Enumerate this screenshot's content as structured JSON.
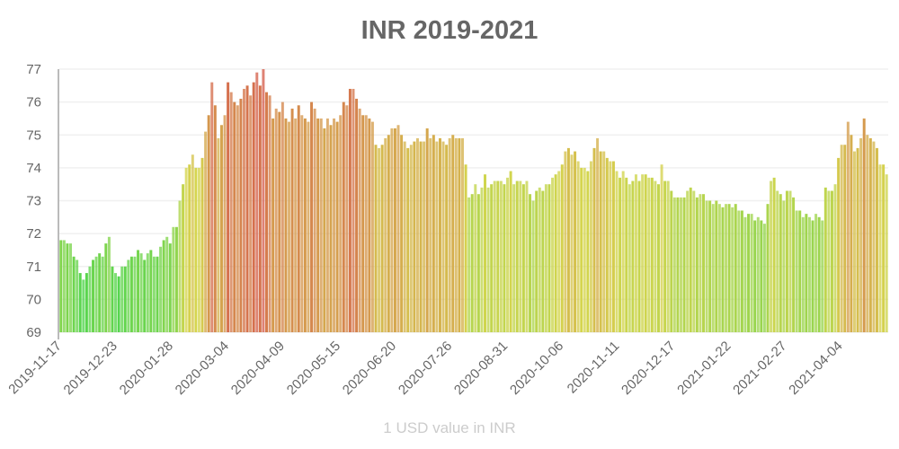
{
  "chart_data": {
    "type": "bar",
    "title": "INR 2019-2021",
    "xlabel": "1 USD value in INR",
    "ylabel": "",
    "ylim": [
      69,
      77
    ],
    "y_ticks": [
      69,
      70,
      71,
      72,
      73,
      74,
      75,
      76,
      77
    ],
    "x_tick_labels": [
      "2019-11-17",
      "2019-12-23",
      "2020-01-28",
      "2020-03-04",
      "2020-04-09",
      "2020-05-15",
      "2020-06-20",
      "2020-07-26",
      "2020-08-31",
      "2020-10-06",
      "2020-11-11",
      "2020-12-17",
      "2021-01-22",
      "2021-02-27",
      "2021-04-04"
    ],
    "grid": true,
    "color_scale": {
      "low": "#3fd83f",
      "mid": "#c8cc3c",
      "high": "#d8402c"
    },
    "values": [
      71.8,
      71.8,
      71.7,
      71.7,
      71.3,
      71.2,
      70.8,
      70.6,
      70.8,
      71.0,
      71.2,
      71.3,
      71.4,
      71.3,
      71.7,
      71.9,
      71.0,
      70.8,
      70.7,
      71.0,
      71.0,
      71.2,
      71.3,
      71.3,
      71.5,
      71.4,
      71.2,
      71.4,
      71.5,
      71.3,
      71.3,
      71.6,
      71.8,
      71.9,
      71.7,
      72.2,
      72.2,
      73.0,
      73.5,
      74.0,
      74.1,
      74.4,
      74.0,
      74.0,
      74.3,
      75.1,
      75.6,
      76.6,
      75.9,
      74.9,
      75.3,
      75.6,
      76.6,
      76.3,
      76.0,
      75.9,
      76.1,
      76.4,
      76.5,
      76.2,
      76.6,
      76.9,
      76.5,
      77.0,
      76.3,
      76.2,
      75.5,
      75.8,
      75.7,
      76.0,
      75.5,
      75.4,
      75.8,
      75.5,
      75.9,
      75.6,
      75.5,
      75.4,
      76.0,
      75.8,
      75.5,
      75.5,
      75.2,
      75.5,
      75.3,
      75.5,
      75.4,
      75.6,
      76.0,
      75.9,
      76.4,
      76.4,
      76.1,
      75.8,
      75.6,
      75.6,
      75.5,
      75.4,
      74.7,
      74.6,
      74.7,
      74.9,
      75.0,
      75.2,
      75.2,
      75.3,
      75.0,
      74.8,
      74.6,
      74.7,
      74.8,
      74.9,
      74.8,
      74.8,
      75.2,
      74.9,
      75.0,
      74.8,
      74.9,
      74.8,
      74.7,
      74.9,
      75.0,
      74.9,
      74.9,
      74.9,
      74.1,
      73.1,
      73.2,
      73.5,
      73.2,
      73.4,
      73.8,
      73.4,
      73.5,
      73.6,
      73.6,
      73.6,
      73.5,
      73.7,
      73.9,
      73.5,
      73.6,
      73.6,
      73.5,
      73.6,
      73.2,
      73.0,
      73.3,
      73.4,
      73.3,
      73.5,
      73.5,
      73.7,
      73.8,
      73.9,
      74.1,
      74.5,
      74.6,
      74.4,
      74.5,
      74.2,
      74.0,
      74.0,
      73.9,
      74.2,
      74.6,
      74.9,
      74.5,
      74.5,
      74.3,
      74.2,
      74.2,
      73.9,
      73.7,
      73.9,
      73.7,
      73.5,
      73.6,
      73.8,
      73.6,
      73.8,
      73.8,
      73.7,
      73.7,
      73.6,
      73.5,
      74.1,
      73.6,
      73.6,
      73.3,
      73.1,
      73.1,
      73.1,
      73.1,
      73.3,
      73.4,
      73.3,
      73.1,
      73.2,
      73.2,
      73.0,
      73.0,
      72.9,
      73.0,
      72.9,
      72.8,
      72.9,
      72.9,
      72.8,
      72.9,
      72.7,
      72.7,
      72.5,
      72.6,
      72.6,
      72.4,
      72.5,
      72.4,
      72.3,
      72.9,
      73.6,
      73.7,
      73.3,
      73.2,
      73.0,
      73.3,
      73.3,
      73.1,
      72.7,
      72.7,
      72.5,
      72.6,
      72.5,
      72.4,
      72.6,
      72.5,
      72.4,
      73.4,
      73.3,
      73.3,
      73.5,
      74.3,
      74.7,
      74.7,
      75.4,
      75.0,
      74.5,
      74.6,
      74.9,
      75.5,
      75.0,
      74.9,
      74.8,
      74.6,
      74.1,
      74.1,
      73.8
    ]
  }
}
